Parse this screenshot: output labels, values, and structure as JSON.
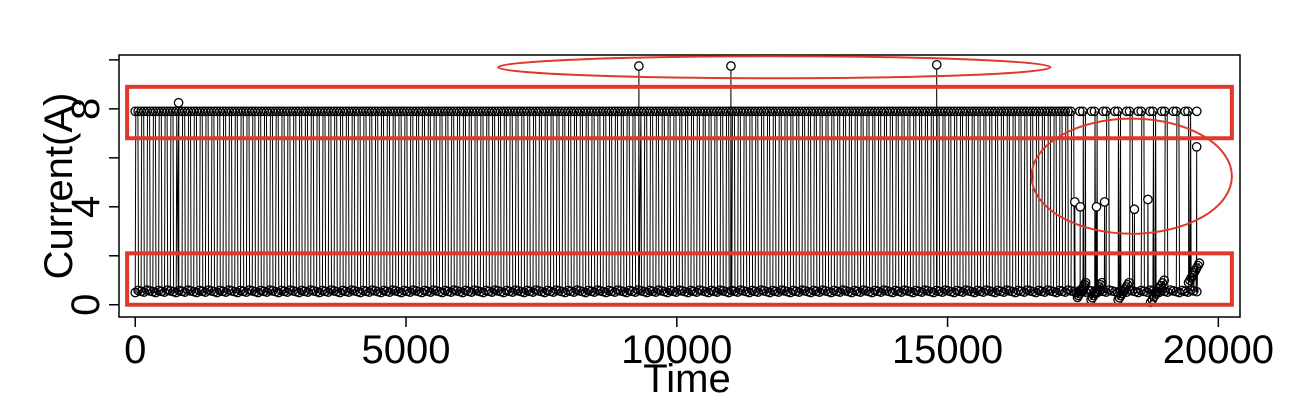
{
  "chart_data": {
    "type": "line",
    "title": "",
    "xlabel": "Time",
    "ylabel": "Current(A)",
    "xlim": [
      -300,
      20400
    ],
    "ylim": [
      -0.5,
      10.2
    ],
    "x_ticks": [
      0,
      5000,
      10000,
      15000,
      20000
    ],
    "x_tick_labels": [
      "0",
      "5000",
      "10000",
      "15000",
      "20000"
    ],
    "y_ticks": [
      0,
      2,
      4,
      6,
      8,
      10
    ],
    "y_tick_labels": [
      "0",
      "",
      "4",
      "",
      "8",
      ""
    ],
    "grid": false,
    "line_color": "#000000",
    "marker": "open-circle",
    "series": [
      {
        "pulse_period": 108,
        "pulse_start": 0,
        "pulse_end": 19650,
        "high_level": 7.9,
        "low_level": 0.5,
        "spikes_high": [
          {
            "x": 800,
            "y": 8.25
          },
          {
            "x": 9300,
            "y": 9.75
          },
          {
            "x": 11000,
            "y": 9.75
          },
          {
            "x": 14800,
            "y": 9.8
          }
        ],
        "anomalies_mid": [
          {
            "x": 17350,
            "y": 4.2
          },
          {
            "x": 17450,
            "y": 4.0
          },
          {
            "x": 17750,
            "y": 4.0
          },
          {
            "x": 17900,
            "y": 4.2
          },
          {
            "x": 18450,
            "y": 3.9
          },
          {
            "x": 18700,
            "y": 4.3
          },
          {
            "x": 19600,
            "y": 6.45
          }
        ],
        "low_rising_segments": [
          {
            "x_start": 17400,
            "x_end": 17550,
            "y_start": 0.3,
            "y_end": 0.9
          },
          {
            "x_start": 17650,
            "x_end": 17850,
            "y_start": 0.2,
            "y_end": 0.9
          },
          {
            "x_start": 18150,
            "x_end": 18350,
            "y_start": 0.2,
            "y_end": 0.9
          },
          {
            "x_start": 18750,
            "x_end": 19000,
            "y_start": 0.1,
            "y_end": 1.0
          },
          {
            "x_start": 19450,
            "x_end": 19650,
            "y_start": 0.9,
            "y_end": 1.7
          }
        ]
      }
    ],
    "annotations": [
      {
        "shape": "rectangle",
        "color": "#e0392b",
        "x_range": [
          -150,
          20250
        ],
        "y_range": [
          6.8,
          8.9
        ]
      },
      {
        "shape": "rectangle",
        "color": "#e0392b",
        "x_range": [
          -150,
          20250
        ],
        "y_range": [
          0.0,
          2.1
        ]
      },
      {
        "shape": "ellipse",
        "color": "#e0392b",
        "x_range": [
          6700,
          16900
        ],
        "y_range": [
          9.25,
          10.15
        ]
      },
      {
        "shape": "ellipse",
        "color": "#e0392b",
        "x_range": [
          16550,
          20250
        ],
        "y_range": [
          2.9,
          7.6
        ]
      }
    ]
  }
}
